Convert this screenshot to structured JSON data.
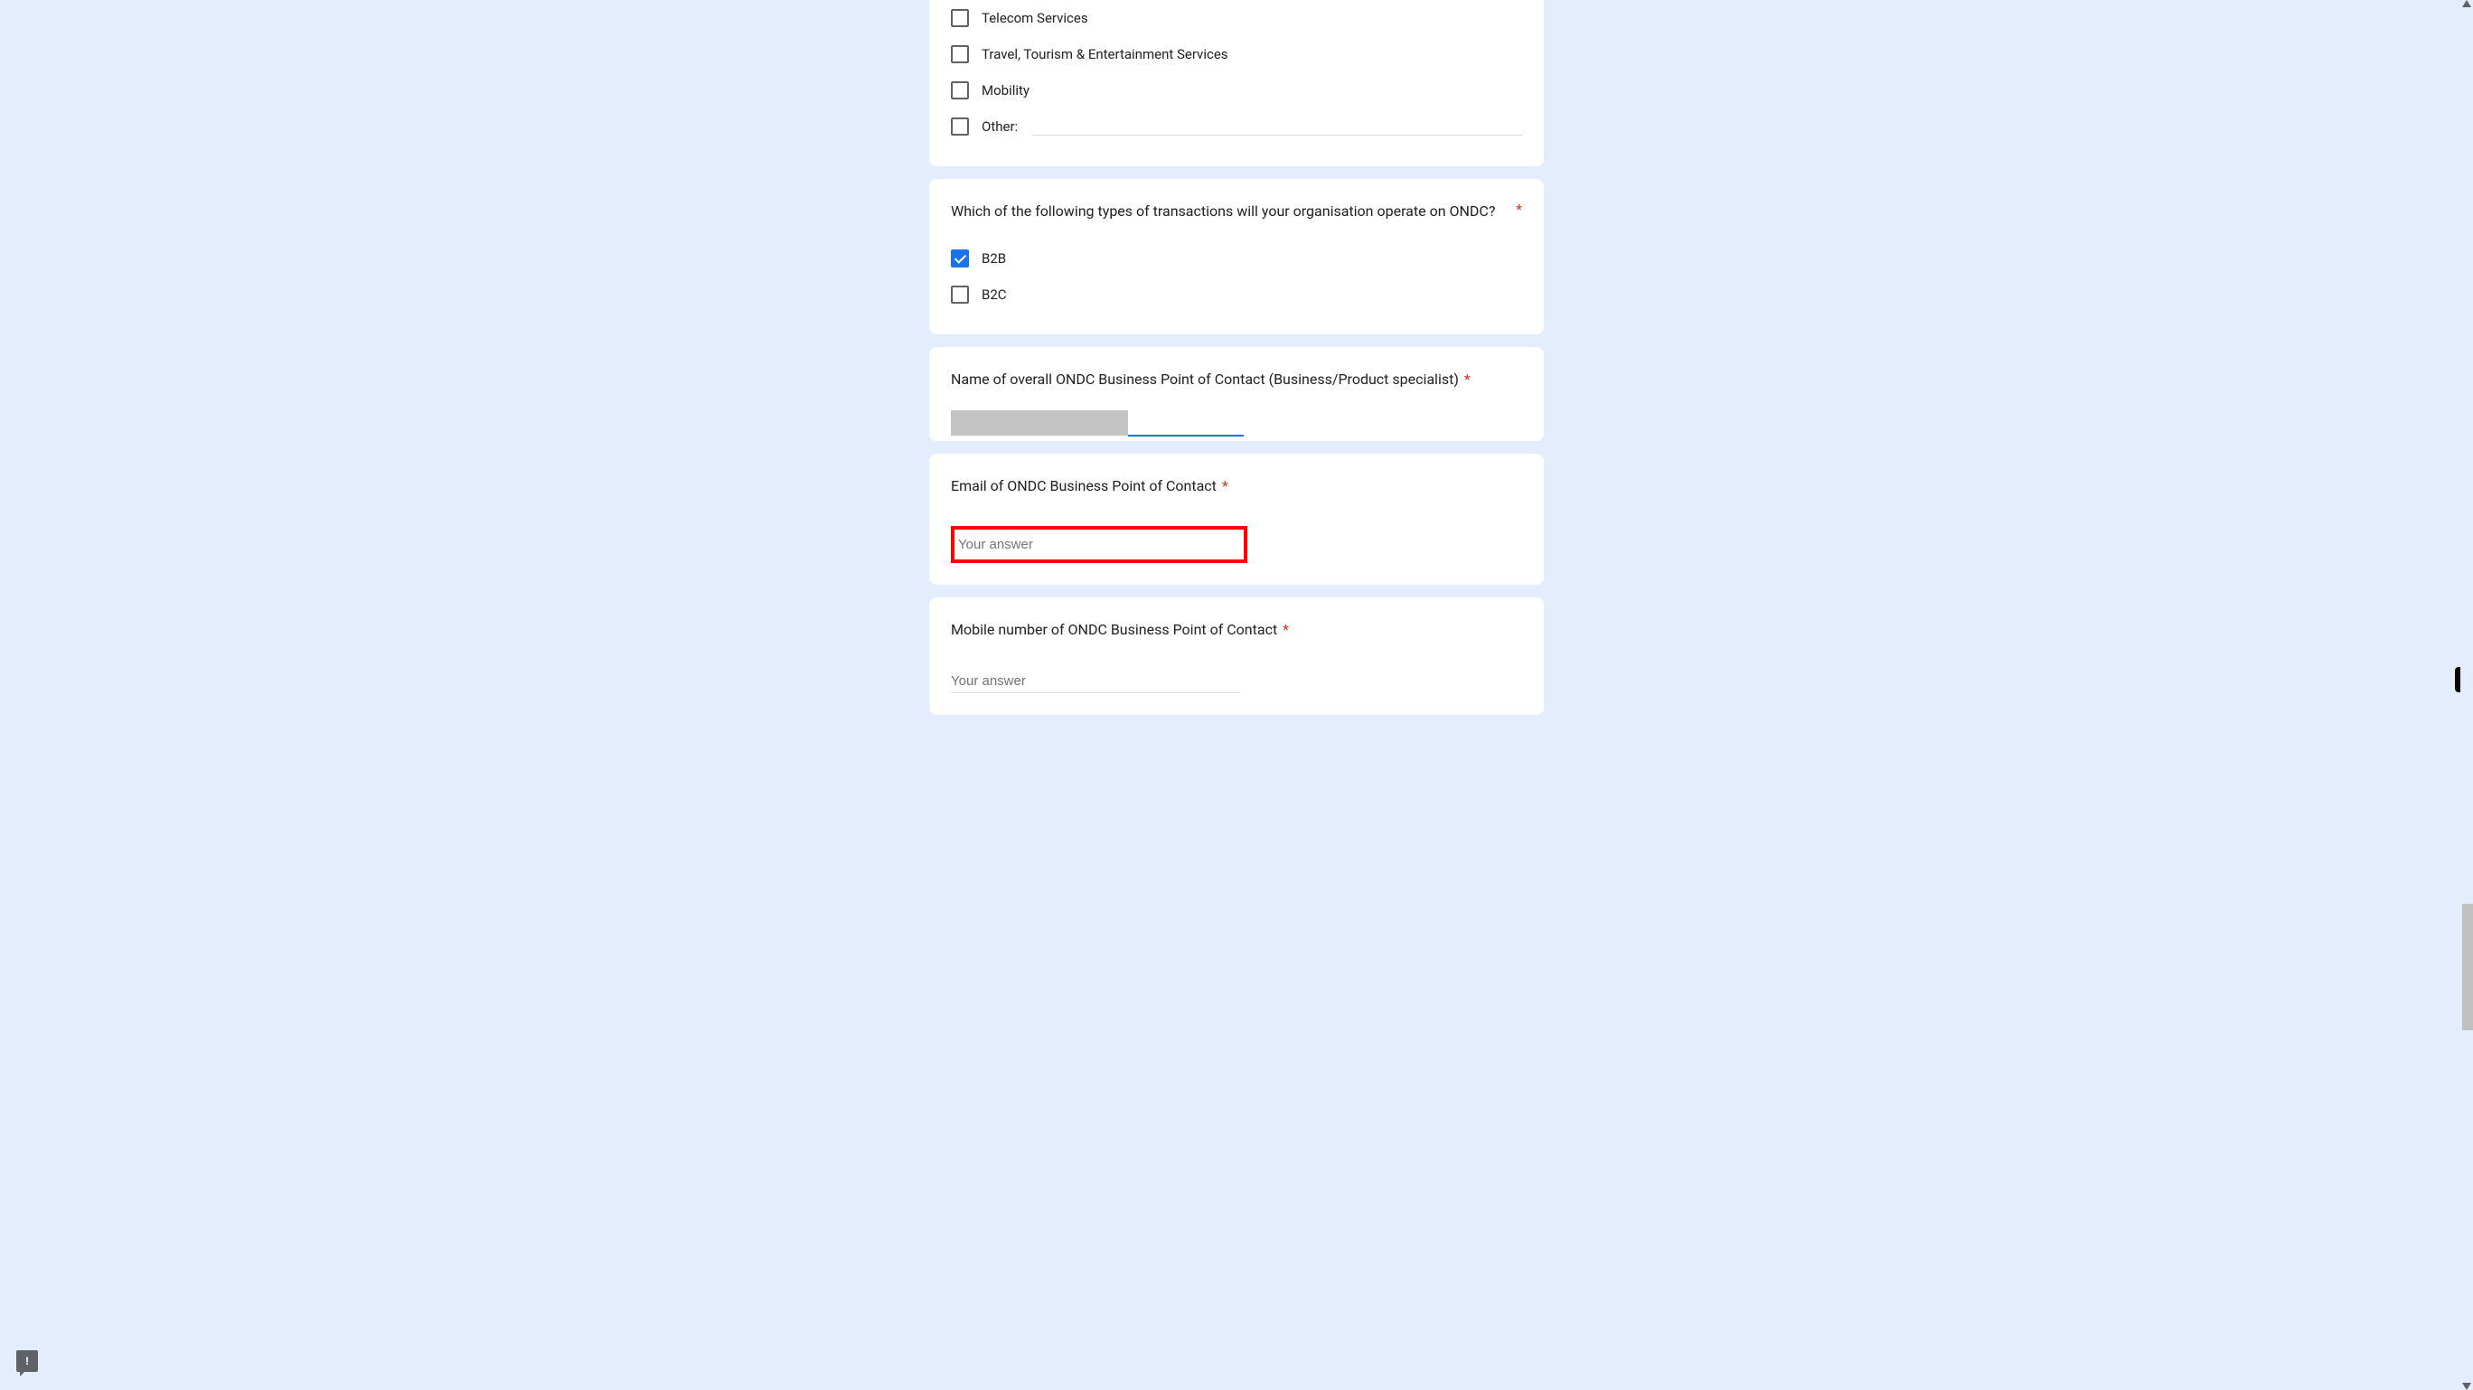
{
  "colors": {
    "page_background": "#e3edfd",
    "card_background": "#ffffff",
    "text_primary": "#202124",
    "text_secondary": "#70757a",
    "checkbox_border": "#5f6368",
    "checkbox_checked": "#1a73e8",
    "input_underline": "#dadce0",
    "input_focused": "#1a73e8",
    "required_asterisk": "#d93025",
    "highlight_border": "#ff0000",
    "redacted_block": "#c4c4c4"
  },
  "section1": {
    "options": {
      "telecom": "Telecom Services",
      "travel": "Travel, Tourism & Entertainment Services",
      "mobility": "Mobility",
      "other": "Other:"
    }
  },
  "question_transaction": {
    "text": "Which of the following types of transactions will your organisation operate on ONDC?",
    "options": {
      "b2b": "B2B",
      "b2c": "B2C"
    }
  },
  "question_name": {
    "text": "Name of overall ONDC Business Point of Contact (Business/Product specialist)"
  },
  "question_email": {
    "text": "Email of ONDC Business Point of Contact",
    "placeholder": "Your answer"
  },
  "question_mobile": {
    "text": "Mobile number of ONDC Business Point of Contact",
    "placeholder": "Your answer"
  }
}
